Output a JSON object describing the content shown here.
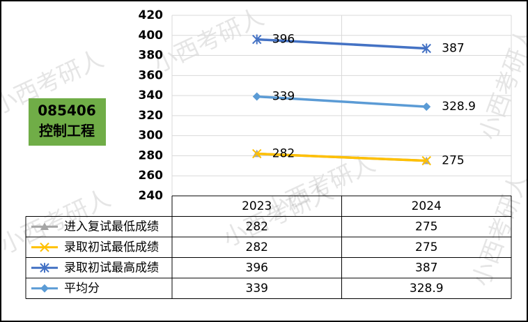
{
  "chart_data": {
    "type": "line",
    "categories": [
      "2023",
      "2024"
    ],
    "series": [
      {
        "name": "进入复试最低成绩",
        "color": "#a5a5a5",
        "marker": "triangle",
        "show_labels": false,
        "values": [
          282,
          275
        ]
      },
      {
        "name": "录取初试最低成绩",
        "color": "#ffc000",
        "marker": "x",
        "show_labels": true,
        "values": [
          282,
          275
        ]
      },
      {
        "name": "录取初试最高成绩",
        "color": "#4472c4",
        "marker": "star",
        "show_labels": true,
        "values": [
          396,
          387
        ]
      },
      {
        "name": "平均分",
        "color": "#5b9bd5",
        "marker": "diamond",
        "show_labels": true,
        "values": [
          339,
          328.9
        ]
      }
    ],
    "ylim": [
      240,
      420
    ],
    "yticks": [
      240,
      260,
      280,
      300,
      320,
      340,
      360,
      380,
      400,
      420
    ],
    "grid": true,
    "legend": "data-table",
    "badge": {
      "code": "085406",
      "name": "控制工程",
      "color": "#70ad47"
    },
    "watermark": "小西考研人"
  }
}
